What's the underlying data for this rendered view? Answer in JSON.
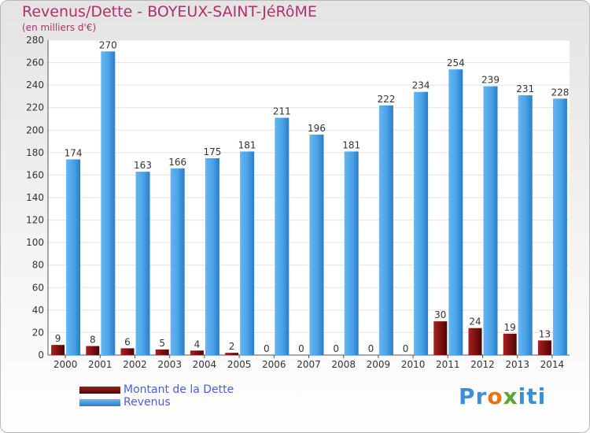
{
  "chart_data": {
    "type": "bar",
    "title": "Revenus/Dette - BOYEUX-SAINT-JéRôME",
    "subtitle": "(en milliers d'€)",
    "categories": [
      "2000",
      "2001",
      "2002",
      "2003",
      "2004",
      "2005",
      "2006",
      "2007",
      "2008",
      "2009",
      "2010",
      "2011",
      "2012",
      "2013",
      "2014"
    ],
    "series": [
      {
        "name": "Montant de la Dette",
        "color": "#7a1010",
        "values": [
          9,
          8,
          6,
          5,
          4,
          2,
          0,
          0,
          0,
          0,
          0,
          30,
          24,
          19,
          13
        ]
      },
      {
        "name": "Revenus",
        "color": "#4ea3e6",
        "values": [
          174,
          270,
          163,
          166,
          175,
          181,
          211,
          196,
          181,
          222,
          234,
          254,
          239,
          231,
          228
        ]
      }
    ],
    "ylim": [
      0,
      280
    ],
    "yticks": [
      0,
      20,
      40,
      60,
      80,
      100,
      120,
      140,
      160,
      180,
      200,
      220,
      240,
      260,
      280
    ],
    "grid": true,
    "legend_position": "bottom-left"
  },
  "logo": {
    "p1": "Pr",
    "o": "o",
    "x": "x",
    "p2": "iti"
  }
}
